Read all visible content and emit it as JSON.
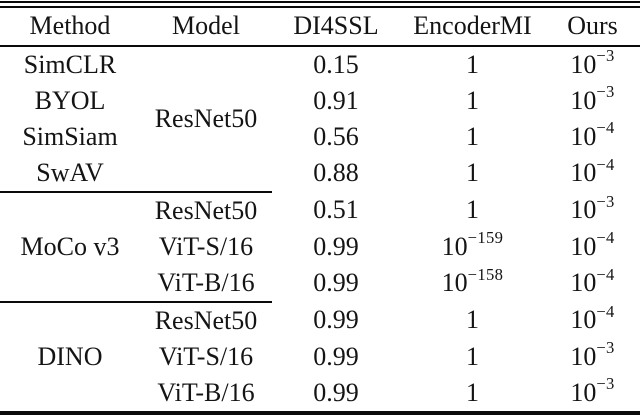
{
  "table": {
    "columns": [
      "Method",
      "Model",
      "DI4SSL",
      "EncoderMI",
      "Ours"
    ],
    "groups": [
      {
        "model_shared": "ResNet50",
        "rows": [
          {
            "method": "SimCLR",
            "di4ssl": "0.15",
            "encodermi": "1",
            "ours": "10^−3"
          },
          {
            "method": "BYOL",
            "di4ssl": "0.91",
            "encodermi": "1",
            "ours": "10^−3"
          },
          {
            "method": "SimSiam",
            "di4ssl": "0.56",
            "encodermi": "1",
            "ours": "10^−4"
          },
          {
            "method": "SwAV",
            "di4ssl": "0.88",
            "encodermi": "1",
            "ours": "10^−4"
          }
        ]
      },
      {
        "method_shared": "MoCo v3",
        "rows": [
          {
            "model": "ResNet50",
            "di4ssl": "0.51",
            "encodermi": "1",
            "ours": "10^−3"
          },
          {
            "model": "ViT-S/16",
            "di4ssl": "0.99",
            "encodermi": "10^−159",
            "ours": "10^−4"
          },
          {
            "model": "ViT-B/16",
            "di4ssl": "0.99",
            "encodermi": "10^−158",
            "ours": "10^−4"
          }
        ]
      },
      {
        "method_shared": "DINO",
        "rows": [
          {
            "model": "ResNet50",
            "di4ssl": "0.99",
            "encodermi": "1",
            "ours": "10^−4"
          },
          {
            "model": "ViT-S/16",
            "di4ssl": "0.99",
            "encodermi": "1",
            "ours": "10^−3"
          },
          {
            "model": "ViT-B/16",
            "di4ssl": "0.99",
            "encodermi": "1",
            "ours": "10^−3"
          }
        ]
      }
    ],
    "rule_color": "#0a0a0a"
  }
}
